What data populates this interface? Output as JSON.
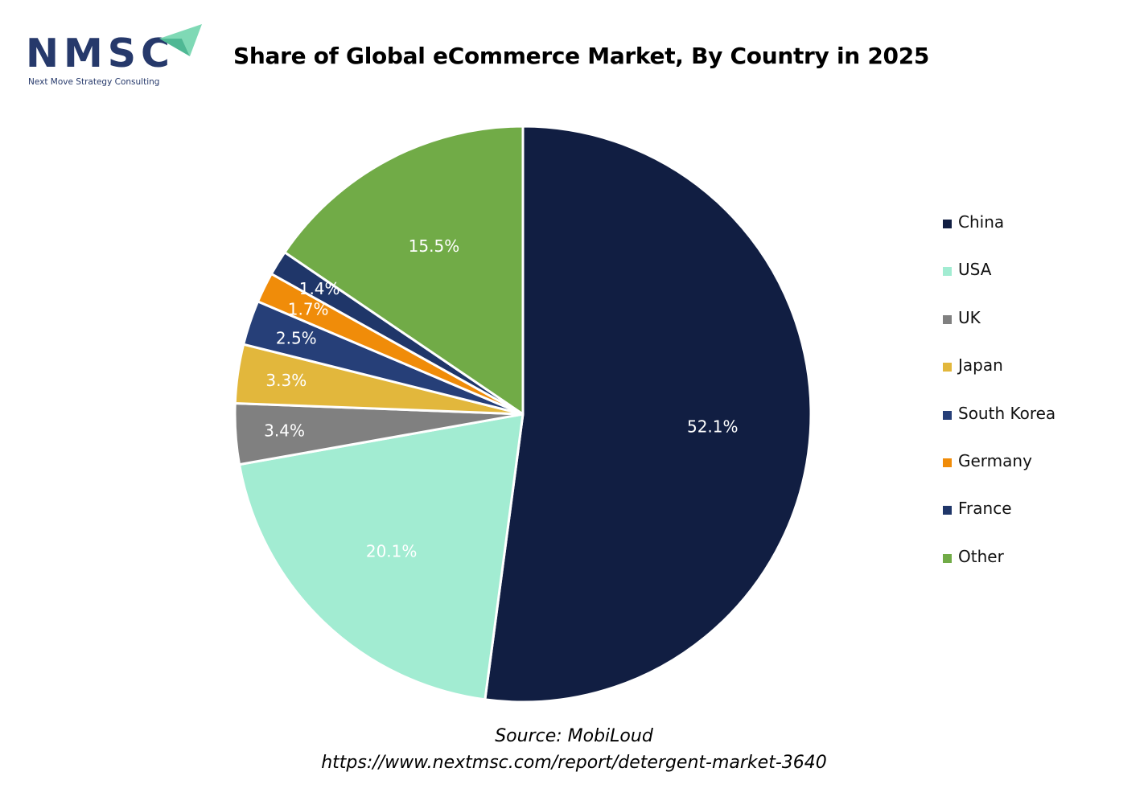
{
  "logo": {
    "text": "NMSC",
    "subtitle": "Next Move Strategy Consulting",
    "accent": "#26396b"
  },
  "chart_data": {
    "type": "pie",
    "title": "Share of Global eCommerce Market, By Country in 2025",
    "legend_position": "right",
    "slices": [
      {
        "label": "China",
        "value": 52.1,
        "display": "52.1%",
        "color": "#111e42"
      },
      {
        "label": "USA",
        "value": 20.1,
        "display": "20.1%",
        "color": "#a2ecd2"
      },
      {
        "label": "UK",
        "value": 3.4,
        "display": "3.4%",
        "color": "#808080"
      },
      {
        "label": "Japan",
        "value": 3.3,
        "display": "3.3%",
        "color": "#e2b73c"
      },
      {
        "label": "South Korea",
        "value": 2.5,
        "display": "2.5%",
        "color": "#263f78"
      },
      {
        "label": "Germany",
        "value": 1.7,
        "display": "1.7%",
        "color": "#f08c09"
      },
      {
        "label": "France",
        "value": 1.4,
        "display": "1.4%",
        "color": "#1f3669"
      },
      {
        "label": "Other",
        "value": 15.5,
        "display": "15.5%",
        "color": "#71ab47"
      }
    ]
  },
  "source": {
    "line1": "Source: MobiLoud",
    "line2": "https://www.nextmsc.com/report/detergent-market-3640"
  }
}
